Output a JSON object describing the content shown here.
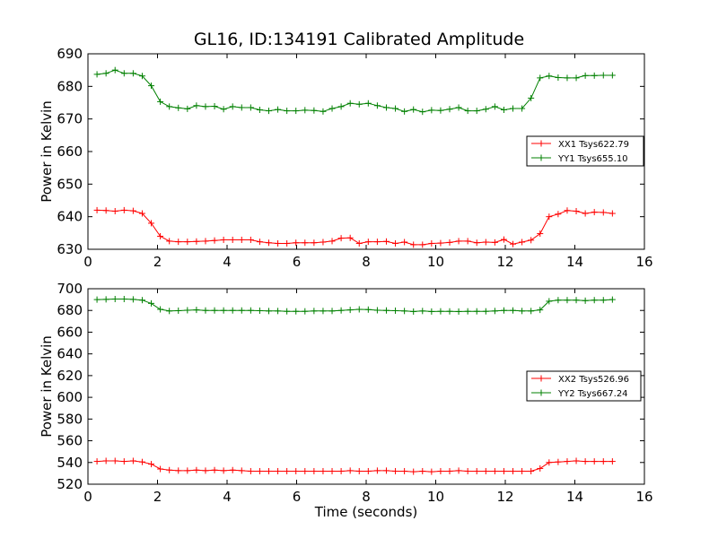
{
  "figure": {
    "title": "GL16, ID:134191 Calibrated Amplitude",
    "xlabel": "Time (seconds)"
  },
  "colors": {
    "red": "#ff0000",
    "green": "#008000"
  },
  "chart_data": [
    {
      "type": "line",
      "ylabel": "Power in Kelvin",
      "xlim": [
        0,
        16
      ],
      "ylim": [
        630,
        690
      ],
      "xticks": [
        "0",
        "2",
        "4",
        "6",
        "8",
        "10",
        "12",
        "14",
        "16"
      ],
      "yticks": [
        "630",
        "640",
        "650",
        "660",
        "670",
        "680",
        "690"
      ],
      "legend_position": "right",
      "x": [
        0.26,
        0.52,
        0.78,
        1.04,
        1.3,
        1.56,
        1.82,
        2.08,
        2.34,
        2.6,
        2.86,
        3.12,
        3.38,
        3.64,
        3.9,
        4.16,
        4.42,
        4.68,
        4.94,
        5.2,
        5.46,
        5.72,
        5.98,
        6.24,
        6.5,
        6.76,
        7.02,
        7.28,
        7.54,
        7.8,
        8.06,
        8.32,
        8.58,
        8.84,
        9.1,
        9.36,
        9.62,
        9.88,
        10.14,
        10.4,
        10.66,
        10.92,
        11.18,
        11.44,
        11.7,
        11.96,
        12.22,
        12.48,
        12.74,
        13.0,
        13.26,
        13.52,
        13.78,
        14.04,
        14.3,
        14.56,
        14.82,
        15.08
      ],
      "series": [
        {
          "name": "XX1 Tsys622.79",
          "color": "#ff0000",
          "values": [
            642.0,
            641.9,
            641.7,
            642.0,
            641.8,
            641.0,
            638.0,
            634.0,
            632.5,
            632.3,
            632.3,
            632.4,
            632.5,
            632.7,
            632.9,
            632.9,
            632.9,
            632.9,
            632.3,
            632.0,
            631.8,
            631.8,
            632.0,
            632.0,
            632.0,
            632.2,
            632.5,
            633.4,
            633.5,
            631.8,
            632.3,
            632.3,
            632.4,
            631.8,
            632.2,
            631.4,
            631.4,
            631.8,
            631.9,
            632.1,
            632.5,
            632.5,
            632.0,
            632.2,
            632.1,
            633.0,
            631.6,
            632.2,
            632.8,
            634.8,
            640.0,
            640.8,
            641.9,
            641.7,
            641.0,
            641.4,
            641.3,
            641.0
          ]
        },
        {
          "name": "YY1 Tsys655.10",
          "color": "#008000",
          "values": [
            683.7,
            684.0,
            685.0,
            684.0,
            684.0,
            683.2,
            680.2,
            675.3,
            673.8,
            673.4,
            673.1,
            674.1,
            673.8,
            673.9,
            673.0,
            673.8,
            673.5,
            673.5,
            672.8,
            672.5,
            672.9,
            672.5,
            672.5,
            672.7,
            672.6,
            672.3,
            673.2,
            673.8,
            674.8,
            674.5,
            674.8,
            674.1,
            673.5,
            673.2,
            672.3,
            672.9,
            672.2,
            672.7,
            672.6,
            673.0,
            673.5,
            672.5,
            672.5,
            673.0,
            673.8,
            672.8,
            673.2,
            673.2,
            676.4,
            682.6,
            683.2,
            682.7,
            682.6,
            682.6,
            683.3,
            683.3,
            683.4,
            683.4
          ]
        }
      ]
    },
    {
      "type": "line",
      "ylabel": "Power in Kelvin",
      "xlim": [
        0,
        16
      ],
      "ylim": [
        520,
        700
      ],
      "xticks": [
        "0",
        "2",
        "4",
        "6",
        "8",
        "10",
        "12",
        "14",
        "16"
      ],
      "yticks": [
        "520",
        "540",
        "560",
        "580",
        "600",
        "620",
        "640",
        "660",
        "680",
        "700"
      ],
      "legend_position": "right",
      "x": [
        0.26,
        0.52,
        0.78,
        1.04,
        1.3,
        1.56,
        1.82,
        2.08,
        2.34,
        2.6,
        2.86,
        3.12,
        3.38,
        3.64,
        3.9,
        4.16,
        4.42,
        4.68,
        4.94,
        5.2,
        5.46,
        5.72,
        5.98,
        6.24,
        6.5,
        6.76,
        7.02,
        7.28,
        7.54,
        7.8,
        8.06,
        8.32,
        8.58,
        8.84,
        9.1,
        9.36,
        9.62,
        9.88,
        10.14,
        10.4,
        10.66,
        10.92,
        11.18,
        11.44,
        11.7,
        11.96,
        12.22,
        12.48,
        12.74,
        13.0,
        13.26,
        13.52,
        13.78,
        14.04,
        14.3,
        14.56,
        14.82,
        15.08
      ],
      "series": [
        {
          "name": "XX2 Tsys526.96",
          "color": "#ff0000",
          "values": [
            541.0,
            541.5,
            541.5,
            541.0,
            541.5,
            540.5,
            538.5,
            534.0,
            533.0,
            532.5,
            532.5,
            533.0,
            532.5,
            533.0,
            532.5,
            533.0,
            532.5,
            532.0,
            532.0,
            532.0,
            532.0,
            532.0,
            532.0,
            532.0,
            532.0,
            532.0,
            532.0,
            532.0,
            532.5,
            532.0,
            532.0,
            532.5,
            532.5,
            532.0,
            532.0,
            531.5,
            532.0,
            531.5,
            532.0,
            532.0,
            532.5,
            532.0,
            532.0,
            532.0,
            532.0,
            532.0,
            532.0,
            532.0,
            532.0,
            534.5,
            540.0,
            540.5,
            541.0,
            541.5,
            541.0,
            541.0,
            541.0,
            541.0
          ]
        },
        {
          "name": "YY2 Tsys667.24",
          "color": "#008000",
          "values": [
            690.0,
            690.2,
            690.5,
            690.5,
            690.2,
            689.5,
            686.5,
            681.0,
            679.5,
            679.8,
            680.2,
            680.5,
            680.0,
            680.0,
            680.0,
            680.0,
            680.0,
            680.0,
            679.8,
            679.5,
            679.5,
            679.2,
            679.2,
            679.2,
            679.5,
            679.5,
            679.5,
            680.0,
            680.5,
            681.0,
            680.8,
            680.2,
            680.0,
            679.8,
            679.5,
            679.0,
            679.5,
            679.0,
            679.2,
            679.2,
            679.0,
            679.2,
            679.2,
            679.2,
            679.5,
            680.0,
            680.0,
            679.5,
            679.5,
            680.5,
            688.5,
            689.5,
            689.5,
            689.5,
            689.0,
            689.5,
            689.5,
            690.0
          ]
        }
      ]
    }
  ]
}
